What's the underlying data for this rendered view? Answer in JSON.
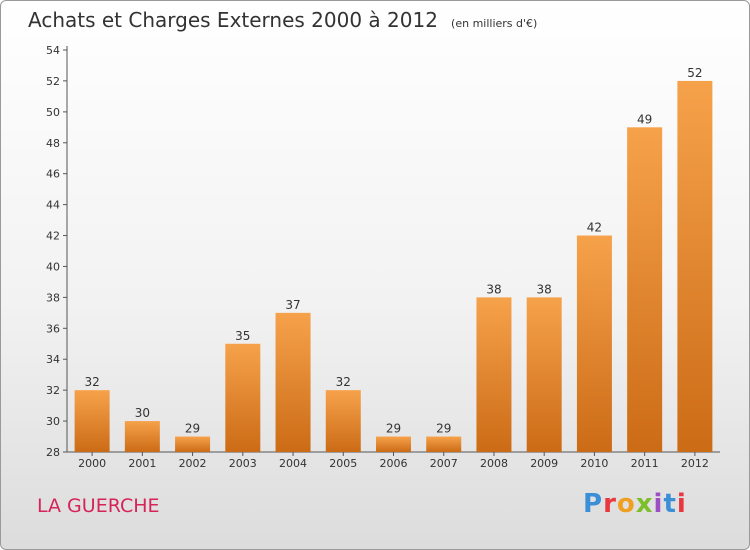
{
  "header": {
    "title": "Achats et Charges Externes 2000 à 2012",
    "unit": "(en milliers d'€)"
  },
  "footer": {
    "city": "LA GUERCHE",
    "logo": "Proxiti"
  },
  "colors": {
    "bar_top": "#f6a24b",
    "bar_bottom": "#cc6b16",
    "axis": "#555555",
    "city": "#d6245a"
  },
  "chart_data": {
    "type": "bar",
    "title": "Achats et Charges Externes 2000 à 2012",
    "subtitle": "(en milliers d'€)",
    "categories": [
      "2000",
      "2001",
      "2002",
      "2003",
      "2004",
      "2005",
      "2006",
      "2007",
      "2008",
      "2009",
      "2010",
      "2011",
      "2012"
    ],
    "values": [
      32,
      30,
      29,
      35,
      37,
      32,
      29,
      29,
      38,
      38,
      42,
      49,
      52
    ],
    "ylim": [
      28,
      54
    ],
    "yticks": [
      28,
      30,
      32,
      34,
      36,
      38,
      40,
      42,
      44,
      46,
      48,
      50,
      52,
      54
    ],
    "grid": false,
    "legend": "none"
  }
}
